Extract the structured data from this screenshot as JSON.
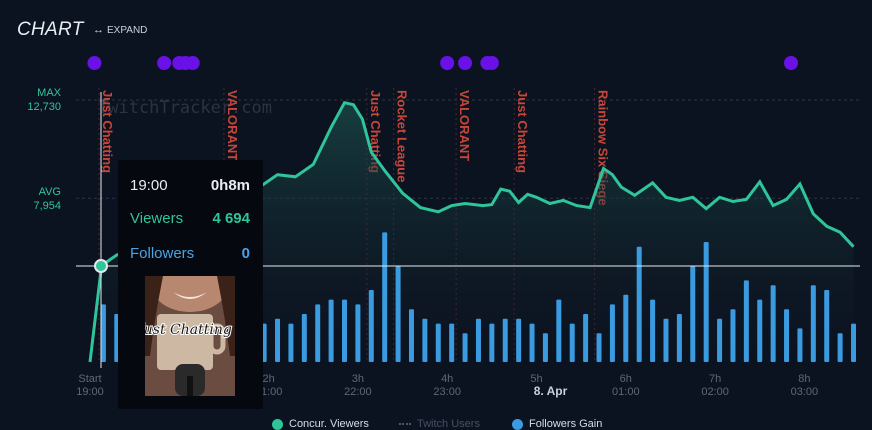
{
  "header": {
    "title": "CHART",
    "expand_label": "EXPAND",
    "expand_icon": "expand-arrows-icon"
  },
  "y_axis": {
    "max_label": "MAX",
    "max_value": "12,730",
    "avg_label": "AVG",
    "avg_value": "7,954"
  },
  "watermark": "TwitchTracker.com",
  "colors": {
    "viewers": "#2fc49a",
    "followers": "#3a9be0",
    "category": "#c0392b",
    "dots": "#6a11e8",
    "background": "#0c1320"
  },
  "tooltip": {
    "time": "19:00",
    "duration": "0h8m",
    "viewers_label": "Viewers",
    "viewers_value": "4 694",
    "followers_label": "Followers",
    "followers_value": "0",
    "thumbnail_text": "Just Chatting"
  },
  "legend": {
    "viewers": "Concur. Viewers",
    "twitch_users": "Twitch Users",
    "followers": "Followers Gain"
  },
  "chart_data": {
    "type": "line",
    "x_ticks": [
      {
        "hour": 0,
        "top": "Start",
        "bottom": "19:00"
      },
      {
        "hour": 2,
        "top": "2h",
        "bottom": "21:00"
      },
      {
        "hour": 3,
        "top": "3h",
        "bottom": "22:00"
      },
      {
        "hour": 4,
        "top": "4h",
        "bottom": "23:00"
      },
      {
        "hour": 5,
        "top": "5h",
        "bottom": "8. Apr"
      },
      {
        "hour": 6,
        "top": "6h",
        "bottom": "01:00"
      },
      {
        "hour": 7,
        "top": "7h",
        "bottom": "02:00"
      },
      {
        "hour": 8,
        "top": "8h",
        "bottom": "03:00"
      }
    ],
    "y_max_value": 12730,
    "y_avg_value": 7954,
    "categories": [
      {
        "hour": 0.1,
        "name": "Just Chatting"
      },
      {
        "hour": 1.5,
        "name": "VALORANT"
      },
      {
        "hour": 3.1,
        "name": "Just Chatting"
      },
      {
        "hour": 3.4,
        "name": "Rocket League"
      },
      {
        "hour": 4.1,
        "name": "VALORANT"
      },
      {
        "hour": 4.75,
        "name": "Just Chatting"
      },
      {
        "hour": 5.65,
        "name": "Rainbow Six Siege"
      }
    ],
    "series": [
      {
        "name": "Concur. Viewers",
        "x": [
          0.0,
          0.13,
          0.3,
          0.6,
          1.0,
          1.4,
          1.8,
          2.1,
          2.3,
          2.5,
          2.7,
          2.85,
          2.95,
          3.05,
          3.15,
          3.3,
          3.5,
          3.7,
          3.9,
          4.05,
          4.2,
          4.4,
          4.5,
          4.6,
          4.7,
          4.8,
          4.9,
          5.0,
          5.15,
          5.3,
          5.45,
          5.6,
          5.75,
          5.85,
          5.95,
          6.1,
          6.3,
          6.45,
          6.6,
          6.75,
          6.9,
          7.05,
          7.2,
          7.35,
          7.5,
          7.65,
          7.8,
          7.95,
          8.1,
          8.25,
          8.4,
          8.55
        ],
        "values": [
          0,
          4694,
          5200,
          5600,
          6100,
          6900,
          8200,
          9100,
          9000,
          9600,
          11400,
          12600,
          12500,
          11800,
          10200,
          9300,
          8200,
          7500,
          7300,
          7600,
          7700,
          7600,
          7650,
          8400,
          8300,
          7750,
          8150,
          8000,
          7700,
          7850,
          7600,
          7500,
          9400,
          9100,
          8500,
          8100,
          8700,
          8000,
          7850,
          8000,
          7450,
          8000,
          7800,
          7900,
          8750,
          7600,
          7900,
          8650,
          7200,
          6600,
          6300,
          5600
        ]
      },
      {
        "name": "Followers Gain",
        "x": [
          0.15,
          0.3,
          0.5,
          0.65,
          0.8,
          0.95,
          1.15,
          1.3,
          1.45,
          1.6,
          1.8,
          1.95,
          2.1,
          2.25,
          2.4,
          2.55,
          2.7,
          2.85,
          3.0,
          3.15,
          3.3,
          3.45,
          3.6,
          3.75,
          3.9,
          4.05,
          4.2,
          4.35,
          4.5,
          4.65,
          4.8,
          4.95,
          5.1,
          5.25,
          5.4,
          5.55,
          5.7,
          5.85,
          6.0,
          6.15,
          6.3,
          6.45,
          6.6,
          6.75,
          6.9,
          7.05,
          7.2,
          7.35,
          7.5,
          7.65,
          7.8,
          7.95,
          8.1,
          8.25,
          8.4,
          8.55
        ],
        "values": [
          12,
          10,
          11,
          9,
          10,
          11,
          10,
          9,
          10,
          11,
          9,
          8,
          9,
          8,
          10,
          12,
          13,
          13,
          12,
          15,
          27,
          20,
          11,
          9,
          8,
          8,
          6,
          9,
          8,
          9,
          9,
          8,
          6,
          13,
          8,
          10,
          6,
          12,
          14,
          24,
          13,
          9,
          10,
          20,
          25,
          9,
          11,
          17,
          13,
          16,
          11,
          7,
          16,
          15,
          6,
          8
        ]
      }
    ],
    "stream_dots_x": [
      0.05,
      0.83,
      1.0,
      1.07,
      1.15,
      4.0,
      4.2,
      4.45,
      4.5,
      7.85
    ]
  }
}
